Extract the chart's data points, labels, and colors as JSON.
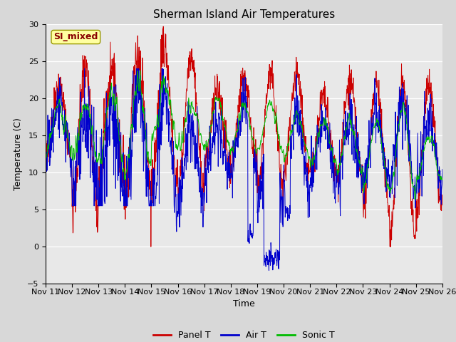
{
  "title": "Sherman Island Air Temperatures",
  "xlabel": "Time",
  "ylabel": "Temperature (C)",
  "ylim": [
    -5,
    30
  ],
  "yticks": [
    -5,
    0,
    5,
    10,
    15,
    20,
    25,
    30
  ],
  "xtick_labels": [
    "Nov 11",
    "Nov 12",
    "Nov 13",
    "Nov 14",
    "Nov 15",
    "Nov 16",
    "Nov 17",
    "Nov 18",
    "Nov 19",
    "Nov 20",
    "Nov 21",
    "Nov 22",
    "Nov 23",
    "Nov 24",
    "Nov 25",
    "Nov 26"
  ],
  "panel_t_color": "#cc0000",
  "air_t_color": "#0000cc",
  "sonic_t_color": "#00bb00",
  "fig_bg_color": "#d8d8d8",
  "plot_bg_color": "#e8e8e8",
  "annotation_text": "SI_mixed",
  "annotation_color": "#880000",
  "annotation_bg": "#ffffa0",
  "legend_items": [
    "Panel T",
    "Air T",
    "Sonic T"
  ],
  "title_fontsize": 11,
  "axis_fontsize": 9,
  "tick_fontsize": 8
}
